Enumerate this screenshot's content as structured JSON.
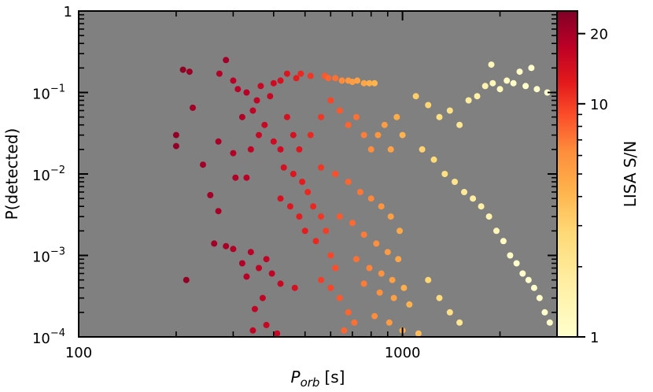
{
  "chart_data": {
    "type": "scatter",
    "title": "",
    "xlabel": {
      "main": "P",
      "sub": "orb",
      "unit": "[s]"
    },
    "ylabel": "P(detected)",
    "xscale": "log",
    "yscale": "log",
    "xlim": [
      100,
      3000
    ],
    "ylim": [
      0.0001,
      1
    ],
    "background_color": "#808080",
    "grid": false,
    "x_ticks": [
      {
        "value": 100,
        "label": "100"
      },
      {
        "value": 1000,
        "label": "1000"
      }
    ],
    "y_ticks": [
      {
        "value": 0.0001,
        "base": "10",
        "exp": "−4"
      },
      {
        "value": 0.001,
        "base": "10",
        "exp": "−3"
      },
      {
        "value": 0.01,
        "base": "10",
        "exp": "−2"
      },
      {
        "value": 0.1,
        "base": "10",
        "exp": "−1"
      },
      {
        "value": 1,
        "base": "",
        "exp": "",
        "label": "1"
      }
    ],
    "colorbar": {
      "label": "LISA S/N",
      "scale": "log",
      "range": [
        1,
        25
      ],
      "colormap": [
        "#ffffcc",
        "#ffeda0",
        "#fed976",
        "#feb24c",
        "#fd8d3c",
        "#fc4e2a",
        "#e31a1c",
        "#bd0026",
        "#800026"
      ],
      "ticks": [
        {
          "value": 1,
          "label": "1"
        },
        {
          "value": 10,
          "label": "10"
        },
        {
          "value": 20,
          "label": "20"
        }
      ]
    },
    "points": [
      [
        210,
        0.19,
        22
      ],
      [
        220,
        0.18,
        21
      ],
      [
        285,
        0.25,
        20
      ],
      [
        272,
        0.17,
        18
      ],
      [
        300,
        0.14,
        17
      ],
      [
        225,
        0.065,
        20
      ],
      [
        200,
        0.03,
        22
      ],
      [
        200,
        0.022,
        22
      ],
      [
        242,
        0.013,
        20
      ],
      [
        270,
        0.025,
        19
      ],
      [
        300,
        0.018,
        18
      ],
      [
        305,
        0.009,
        18
      ],
      [
        255,
        0.0055,
        20
      ],
      [
        270,
        0.0035,
        19
      ],
      [
        330,
        0.009,
        17
      ],
      [
        340,
        0.02,
        16
      ],
      [
        215,
        0.0005,
        22
      ],
      [
        262,
        0.0014,
        20
      ],
      [
        285,
        0.0013,
        19
      ],
      [
        300,
        0.0012,
        18
      ],
      [
        320,
        0.0008,
        18
      ],
      [
        340,
        0.0011,
        17
      ],
      [
        360,
        0.0007,
        16
      ],
      [
        380,
        0.0009,
        16
      ],
      [
        330,
        0.00055,
        17
      ],
      [
        395,
        0.0006,
        16
      ],
      [
        420,
        0.00045,
        15
      ],
      [
        370,
        0.0003,
        16
      ],
      [
        350,
        0.00022,
        16
      ],
      [
        465,
        0.0004,
        13
      ],
      [
        345,
        0.00012,
        16
      ],
      [
        380,
        0.00014,
        15
      ],
      [
        410,
        0.00011,
        15
      ],
      [
        320,
        0.05,
        18
      ],
      [
        355,
        0.08,
        16
      ],
      [
        345,
        0.06,
        16
      ],
      [
        330,
        0.1,
        17
      ],
      [
        310,
        0.11,
        17
      ],
      [
        365,
        0.12,
        15
      ],
      [
        390,
        0.09,
        15
      ],
      [
        400,
        0.13,
        14
      ],
      [
        420,
        0.14,
        13
      ],
      [
        440,
        0.17,
        12
      ],
      [
        470,
        0.15,
        11
      ],
      [
        485,
        0.17,
        10
      ],
      [
        520,
        0.16,
        9
      ],
      [
        575,
        0.16,
        7
      ],
      [
        590,
        0.15,
        6.5
      ],
      [
        620,
        0.15,
        6
      ],
      [
        650,
        0.14,
        5
      ],
      [
        680,
        0.14,
        4.5
      ],
      [
        700,
        0.135,
        4.2
      ],
      [
        725,
        0.14,
        4
      ],
      [
        760,
        0.13,
        3.8
      ],
      [
        790,
        0.13,
        3.5
      ],
      [
        820,
        0.13,
        3.3
      ],
      [
        375,
        0.04,
        15
      ],
      [
        360,
        0.03,
        15
      ],
      [
        400,
        0.025,
        14
      ],
      [
        420,
        0.02,
        14
      ],
      [
        440,
        0.05,
        13
      ],
      [
        460,
        0.03,
        13
      ],
      [
        480,
        0.02,
        12
      ],
      [
        430,
        0.012,
        13
      ],
      [
        460,
        0.01,
        12
      ],
      [
        490,
        0.008,
        11
      ],
      [
        420,
        0.005,
        13
      ],
      [
        450,
        0.004,
        12
      ],
      [
        480,
        0.003,
        11
      ],
      [
        510,
        0.006,
        10
      ],
      [
        530,
        0.004,
        10
      ],
      [
        560,
        0.003,
        9
      ],
      [
        500,
        0.002,
        11
      ],
      [
        540,
        0.0015,
        10
      ],
      [
        580,
        0.002,
        8.5
      ],
      [
        600,
        0.001,
        8
      ],
      [
        620,
        0.0007,
        7.5
      ],
      [
        560,
        0.0005,
        8.5
      ],
      [
        600,
        0.0004,
        8
      ],
      [
        640,
        0.0003,
        7
      ],
      [
        680,
        0.0002,
        6.5
      ],
      [
        710,
        0.00015,
        6
      ],
      [
        660,
        0.00012,
        6.5
      ],
      [
        520,
        0.03,
        10
      ],
      [
        560,
        0.05,
        9
      ],
      [
        600,
        0.08,
        8
      ],
      [
        640,
        0.06,
        7
      ],
      [
        680,
        0.04,
        6.5
      ],
      [
        720,
        0.05,
        6
      ],
      [
        760,
        0.03,
        5.5
      ],
      [
        800,
        0.02,
        5
      ],
      [
        840,
        0.03,
        4.6
      ],
      [
        880,
        0.04,
        4.2
      ],
      [
        920,
        0.02,
        4
      ],
      [
        960,
        0.05,
        3.6
      ],
      [
        1000,
        0.03,
        3.3
      ],
      [
        560,
        0.012,
        9
      ],
      [
        620,
        0.01,
        7.5
      ],
      [
        680,
        0.008,
        6.5
      ],
      [
        740,
        0.006,
        5.8
      ],
      [
        800,
        0.005,
        5.2
      ],
      [
        860,
        0.004,
        4.6
      ],
      [
        920,
        0.003,
        4.1
      ],
      [
        980,
        0.002,
        3.7
      ],
      [
        640,
        0.003,
        7
      ],
      [
        700,
        0.0025,
        6.3
      ],
      [
        760,
        0.0018,
        5.6
      ],
      [
        830,
        0.0014,
        4.9
      ],
      [
        900,
        0.0011,
        4.3
      ],
      [
        970,
        0.0009,
        3.8
      ],
      [
        720,
        0.0009,
        6
      ],
      [
        790,
        0.0007,
        5.3
      ],
      [
        860,
        0.0006,
        4.7
      ],
      [
        930,
        0.0005,
        4.1
      ],
      [
        1010,
        0.0004,
        3.5
      ],
      [
        760,
        0.00045,
        5.6
      ],
      [
        850,
        0.00035,
        4.8
      ],
      [
        940,
        0.0003,
        4.1
      ],
      [
        1050,
        0.00025,
        3.3
      ],
      [
        820,
        0.00018,
        5
      ],
      [
        910,
        0.00015,
        4.3
      ],
      [
        1000,
        0.00012,
        3.5
      ],
      [
        1120,
        0.00011,
        3
      ],
      [
        1100,
        0.09,
        2.5
      ],
      [
        1200,
        0.07,
        2.3
      ],
      [
        1300,
        0.05,
        2
      ],
      [
        1400,
        0.06,
        1.9
      ],
      [
        1500,
        0.04,
        1.7
      ],
      [
        1600,
        0.08,
        1.5
      ],
      [
        1700,
        0.09,
        1.4
      ],
      [
        1800,
        0.12,
        1.3
      ],
      [
        1900,
        0.13,
        1.2
      ],
      [
        2000,
        0.11,
        1.15
      ],
      [
        2100,
        0.14,
        1.1
      ],
      [
        2200,
        0.13,
        1.05
      ],
      [
        2400,
        0.12,
        1
      ],
      [
        2600,
        0.11,
        1
      ],
      [
        2800,
        0.1,
        1
      ],
      [
        1880,
        0.22,
        1.2
      ],
      [
        2300,
        0.18,
        1.05
      ],
      [
        2500,
        0.2,
        1
      ],
      [
        1150,
        0.02,
        2.4
      ],
      [
        1250,
        0.015,
        2.2
      ],
      [
        1350,
        0.01,
        2
      ],
      [
        1450,
        0.008,
        1.8
      ],
      [
        1550,
        0.006,
        1.6
      ],
      [
        1650,
        0.005,
        1.5
      ],
      [
        1750,
        0.004,
        1.4
      ],
      [
        1850,
        0.003,
        1.3
      ],
      [
        1950,
        0.002,
        1.2
      ],
      [
        2050,
        0.0015,
        1.1
      ],
      [
        2150,
        0.001,
        1.05
      ],
      [
        2250,
        0.0008,
        1
      ],
      [
        2350,
        0.0006,
        1
      ],
      [
        2450,
        0.0005,
        1
      ],
      [
        2550,
        0.0004,
        1
      ],
      [
        2650,
        0.0003,
        1
      ],
      [
        2750,
        0.0002,
        1
      ],
      [
        2850,
        0.00015,
        1
      ],
      [
        1200,
        0.0005,
        2.3
      ],
      [
        1300,
        0.0003,
        2.1
      ],
      [
        1400,
        0.0002,
        1.9
      ],
      [
        1500,
        0.00015,
        1.7
      ]
    ]
  }
}
